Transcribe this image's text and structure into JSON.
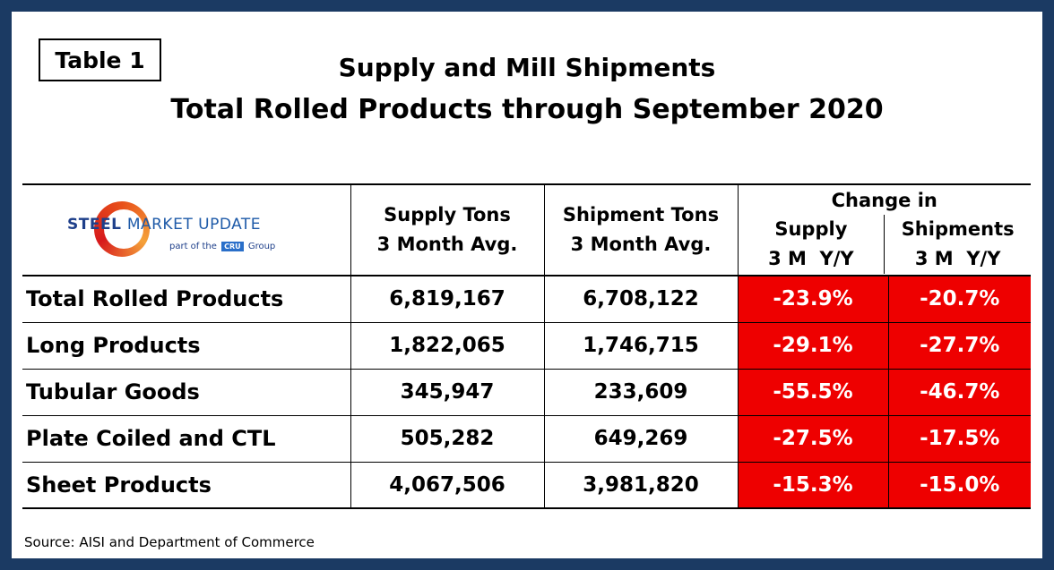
{
  "table_label": "Table 1",
  "title_line1": "Supply and Mill Shipments",
  "title_line2": "Total Rolled Products through September 2020",
  "logo": {
    "brand_first": "STEEL ",
    "brand_second": "MARKET",
    "brand_third": " UPDATE",
    "sub_pre": "part of the",
    "sub_cru": "CRU",
    "sub_post": "Group"
  },
  "columns": {
    "supply_l1": "Supply Tons",
    "supply_l2": "3 Month Avg.",
    "ship_l1": "Shipment Tons",
    "ship_l2": "3 Month Avg.",
    "change_in": "Change in",
    "chg_supply": "Supply",
    "chg_ships": "Shipments",
    "period": "3 M  Y/Y"
  },
  "chart_data": {
    "type": "table",
    "title": "Supply and Mill Shipments — Total Rolled Products through September 2020",
    "headers": [
      "",
      "Supply Tons 3 Month Avg.",
      "Shipment Tons 3 Month Avg.",
      "Change in Supply 3 M Y/Y",
      "Change in Shipments 3 M Y/Y"
    ],
    "rows": [
      {
        "label": "Total Rolled Products",
        "supply": "6,819,167",
        "shipments": "6,708,122",
        "supply_chg": "-23.9%",
        "ship_chg": "-20.7%"
      },
      {
        "label": "Long Products",
        "supply": "1,822,065",
        "shipments": "1,746,715",
        "supply_chg": "-29.1%",
        "ship_chg": "-27.7%"
      },
      {
        "label": "Tubular Goods",
        "supply": "345,947",
        "shipments": "233,609",
        "supply_chg": "-55.5%",
        "ship_chg": "-46.7%"
      },
      {
        "label": "Plate Coiled and CTL",
        "supply": "505,282",
        "shipments": "649,269",
        "supply_chg": "-27.5%",
        "ship_chg": "-17.5%"
      },
      {
        "label": "Sheet Products",
        "supply": "4,067,506",
        "shipments": "3,981,820",
        "supply_chg": "-15.3%",
        "ship_chg": "-15.0%"
      }
    ]
  },
  "source": "Source: AISI and Department of Commerce",
  "colors": {
    "frame": "#1b3a63",
    "negative_fill": "#ee0000",
    "logo_blue": "#1e3f8a",
    "logo_orange": "#e8501a"
  }
}
